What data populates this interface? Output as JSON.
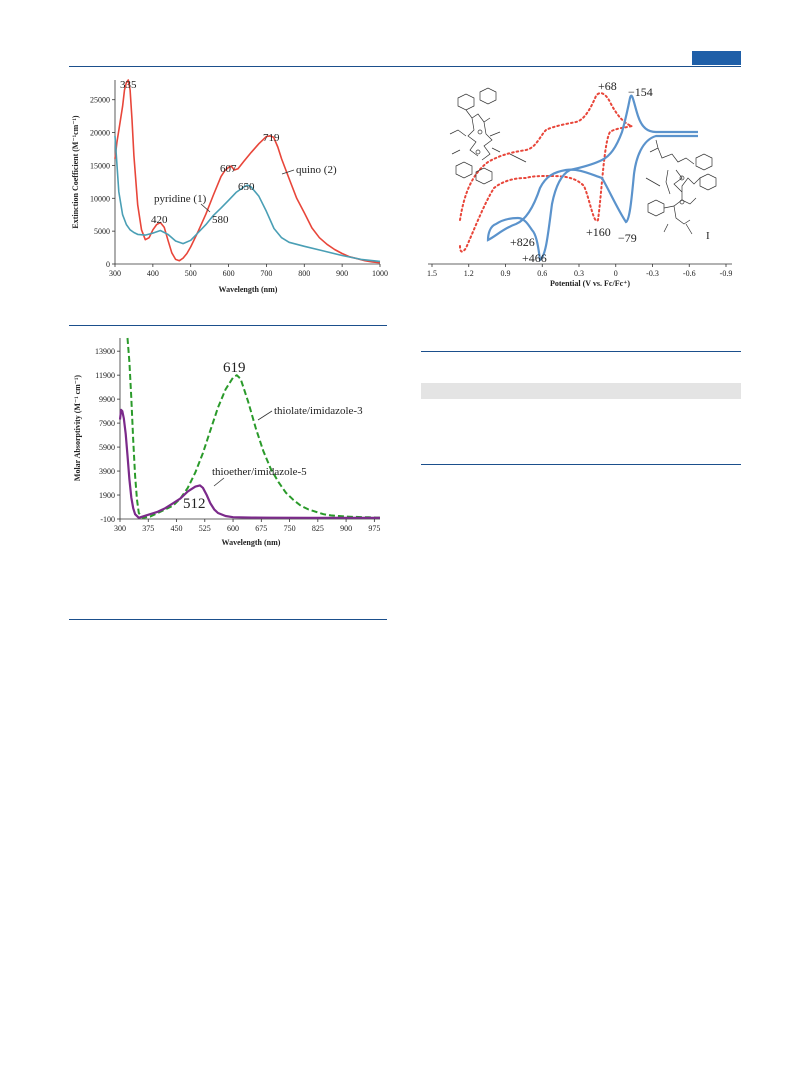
{
  "chart_data": [
    {
      "type": "line",
      "title": "",
      "xlabel": "Wavelength (nm)",
      "ylabel": "Extinction Coefficient (M⁻¹cm⁻¹)",
      "xlim": [
        300,
        1000
      ],
      "ylim": [
        0,
        28000
      ],
      "x_ticks": [
        "300",
        "400",
        "500",
        "600",
        "700",
        "800",
        "900",
        "1000"
      ],
      "y_ticks": [
        "0",
        "5000",
        "10000",
        "15000",
        "20000",
        "25000"
      ],
      "grid": false,
      "series": [
        {
          "name": "quino (2)",
          "color": "#e8463a",
          "x": [
            300,
            305,
            312,
            320,
            325,
            330,
            335,
            340,
            345,
            350,
            360,
            370,
            380,
            390,
            400,
            410,
            420,
            430,
            440,
            450,
            460,
            470,
            480,
            490,
            500,
            520,
            540,
            560,
            580,
            590,
            600,
            607,
            615,
            625,
            640,
            660,
            680,
            700,
            710,
            719,
            730,
            740,
            760,
            780,
            800,
            820,
            840,
            860,
            880,
            900,
            920,
            940,
            960,
            980,
            1000
          ],
          "y": [
            16000,
            18500,
            21000,
            24000,
            26500,
            27600,
            28000,
            26500,
            22000,
            16500,
            9000,
            5200,
            3700,
            4000,
            5200,
            6000,
            6300,
            5600,
            3600,
            1700,
            700,
            500,
            900,
            1600,
            2600,
            5000,
            7600,
            10500,
            13300,
            14200,
            14700,
            14900,
            14300,
            14500,
            15600,
            17000,
            18300,
            19400,
            19500,
            19300,
            17800,
            16000,
            13000,
            10000,
            7800,
            5500,
            4000,
            3000,
            2200,
            1600,
            1100,
            800,
            500,
            300,
            200
          ]
        },
        {
          "name": "pyridine (1)",
          "color": "#4a9fb5",
          "x": [
            300,
            310,
            320,
            330,
            340,
            350,
            360,
            380,
            400,
            420,
            440,
            460,
            480,
            500,
            520,
            540,
            560,
            580,
            600,
            620,
            640,
            650,
            660,
            680,
            700,
            720,
            740,
            760,
            780,
            800,
            850,
            900,
            950,
            1000
          ],
          "y": [
            19500,
            11000,
            7500,
            6000,
            5200,
            4800,
            4500,
            4400,
            4700,
            5100,
            4500,
            3500,
            3100,
            3600,
            4800,
            6000,
            7400,
            8500,
            9700,
            10900,
            11700,
            12000,
            11700,
            10300,
            8000,
            5400,
            4000,
            3300,
            3000,
            2700,
            2000,
            1300,
            700,
            400
          ]
        }
      ],
      "annotations": [
        {
          "text": "335",
          "x": 335,
          "y": 28000
        },
        {
          "text": "420",
          "x": 420,
          "y": 6300
        },
        {
          "text": "607",
          "x": 607,
          "y": 14900
        },
        {
          "text": "650",
          "x": 650,
          "y": 12000
        },
        {
          "text": "719",
          "x": 719,
          "y": 19500
        },
        {
          "text": "580",
          "x": 580,
          "y": 8500
        },
        {
          "text": "pyridine (1)",
          "series": "pyridine (1)"
        },
        {
          "text": "quino (2)",
          "series": "quino (2)"
        }
      ]
    },
    {
      "type": "line",
      "title": "",
      "xlabel": "Potential (V vs. Fc/Fc⁺)",
      "ylabel": "",
      "xlim": [
        1.5,
        -0.9
      ],
      "x_reversed": true,
      "x_ticks": [
        "1.5",
        "1.2",
        "0.9",
        "0.6",
        "0.3",
        "0",
        "-0.3",
        "-0.6",
        "-0.9"
      ],
      "grid": false,
      "series": [
        {
          "name": "",
          "style": "solid",
          "color": "#5b93cc"
        },
        {
          "name": "",
          "style": "dotted",
          "color": "#e8463a"
        }
      ],
      "annotations": [
        "+68",
        "−154",
        "+826",
        "+466",
        "+160",
        "−79",
        "I"
      ]
    },
    {
      "type": "line",
      "title": "",
      "xlabel": "Wavelength (nm)",
      "ylabel": "Molar Absorptivity (M⁻¹ cm⁻¹)",
      "xlim": [
        300,
        990
      ],
      "ylim": [
        -100,
        15000
      ],
      "x_ticks": [
        "300",
        "375",
        "450",
        "525",
        "600",
        "675",
        "750",
        "825",
        "900",
        "975"
      ],
      "y_ticks": [
        "-100",
        "1900",
        "3900",
        "5900",
        "7900",
        "9900",
        "11900",
        "13900"
      ],
      "grid": false,
      "series": [
        {
          "name": "thiolate/imidazole-3",
          "color": "#2a9a2a",
          "style": "dashed",
          "x": [
            320,
            325,
            330,
            335,
            340,
            345,
            350,
            360,
            380,
            400,
            420,
            440,
            460,
            480,
            500,
            520,
            540,
            560,
            580,
            600,
            610,
            620,
            640,
            660,
            680,
            700,
            720,
            740,
            760,
            780,
            800,
            820,
            840,
            860,
            880,
            900,
            940,
            960,
            980,
            990
          ],
          "y": [
            15000,
            13000,
            10000,
            6500,
            3500,
            1500,
            400,
            0,
            100,
            400,
            700,
            1000,
            1600,
            2500,
            3800,
            5400,
            7300,
            9200,
            10700,
            11700,
            11900,
            11600,
            9700,
            7500,
            5600,
            4100,
            3000,
            2100,
            1500,
            1000,
            700,
            500,
            300,
            200,
            150,
            100,
            60,
            40,
            20,
            20
          ]
        },
        {
          "name": "thioether/imidazole-5",
          "color": "#7b2a8a",
          "style": "solid",
          "x": [
            300,
            303,
            306,
            310,
            315,
            320,
            325,
            330,
            335,
            340,
            350,
            360,
            380,
            400,
            420,
            440,
            460,
            480,
            500,
            512,
            520,
            530,
            540,
            550,
            560,
            580,
            600,
            650,
            700,
            800,
            900,
            990
          ],
          "y": [
            8200,
            9000,
            8900,
            8300,
            7000,
            5200,
            3200,
            1700,
            800,
            300,
            0,
            100,
            300,
            500,
            800,
            1200,
            1600,
            2200,
            2600,
            2700,
            2500,
            1900,
            1200,
            700,
            400,
            150,
            50,
            20,
            10,
            0,
            0,
            0
          ]
        }
      ],
      "annotations": [
        {
          "text": "619",
          "x": 619,
          "y": 11900
        },
        {
          "text": "512",
          "x": 512,
          "y": 2700
        },
        {
          "text": "thiolate/imidazole-3",
          "series": "thiolate/imidazole-3"
        },
        {
          "text": "thioether/imidazole-5",
          "series": "thioether/imidazole-5"
        }
      ]
    }
  ]
}
